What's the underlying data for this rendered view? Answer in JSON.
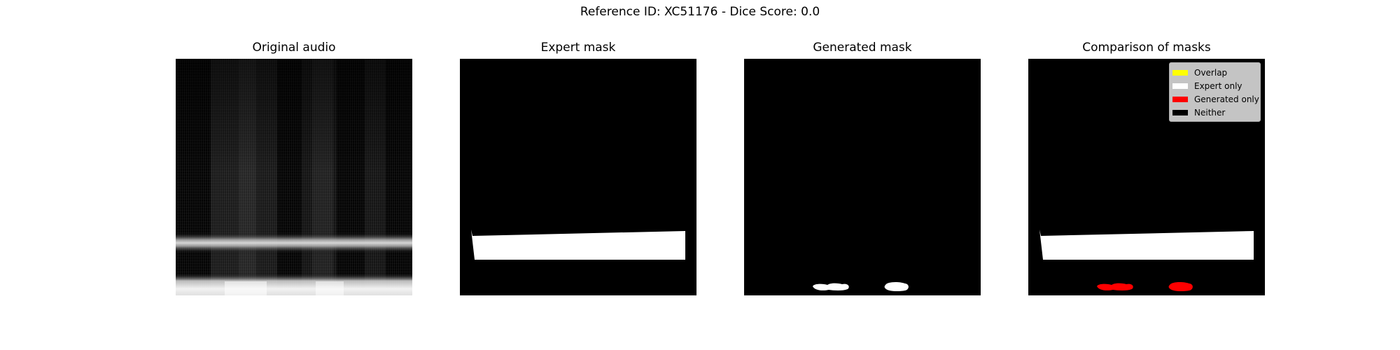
{
  "figure": {
    "suptitle": "Reference ID: XC51176 - Dice Score: 0.0"
  },
  "panels": [
    {
      "title": "Original audio"
    },
    {
      "title": "Expert mask"
    },
    {
      "title": "Generated mask"
    },
    {
      "title": "Comparison of masks"
    }
  ],
  "legend": {
    "placement": "top-right",
    "items": [
      {
        "label": "Overlap",
        "color": "#ffff00"
      },
      {
        "label": "Expert only",
        "color": "#ffffff"
      },
      {
        "label": "Generated only",
        "color": "#ff0000"
      },
      {
        "label": "Neither",
        "color": "#000000"
      }
    ]
  },
  "colors": {
    "background": "#000000",
    "expert_mask": "#ffffff",
    "generated_mask": "#ffffff",
    "comparison_generated_only": "#ff0000",
    "comparison_expert_only": "#ffffff"
  }
}
